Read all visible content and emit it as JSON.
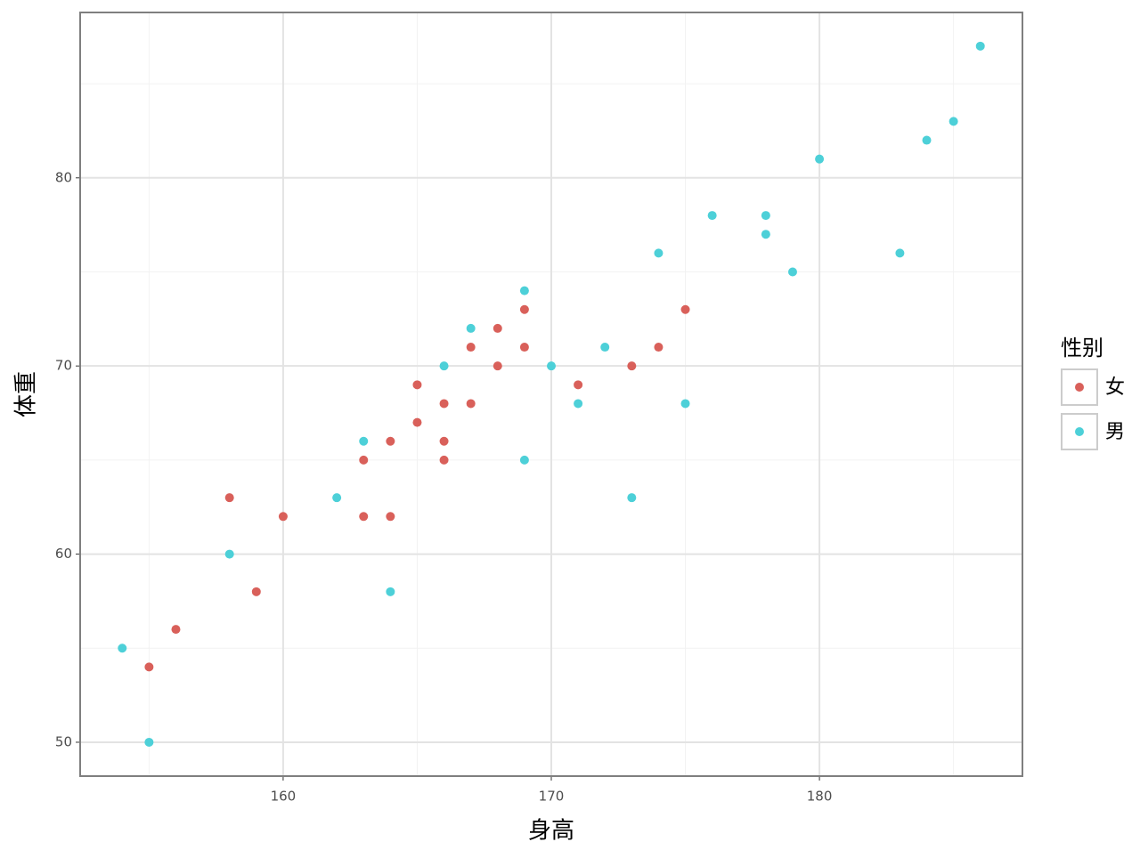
{
  "chart_data": {
    "type": "scatter",
    "x_label": "身高",
    "y_label": "体重",
    "xlim": [
      152.43,
      187.57
    ],
    "ylim": [
      48.2,
      88.79
    ],
    "xticks": [
      160,
      170,
      180
    ],
    "yticks": [
      50,
      60,
      70,
      80
    ],
    "xminor": [
      155,
      165,
      175,
      185
    ],
    "yminor": [
      55,
      65,
      75,
      85
    ],
    "grid": true,
    "legend_title": "性别",
    "legend_position": "right",
    "series": [
      {
        "name": "女",
        "color": "#d9605a",
        "x": [
          155,
          156,
          158,
          159,
          160,
          163,
          163,
          164,
          164,
          165,
          165,
          166,
          166,
          166,
          167,
          167,
          168,
          168,
          169,
          169,
          171,
          173,
          174,
          175
        ],
        "values": [
          54,
          56,
          63,
          58,
          62,
          65,
          62,
          66,
          62,
          69,
          67,
          68,
          66,
          65,
          71,
          68,
          72,
          70,
          73,
          71,
          69,
          70,
          71,
          73
        ]
      },
      {
        "name": "男",
        "color": "#4dd0d8",
        "x": [
          154,
          155,
          158,
          162,
          163,
          164,
          166,
          167,
          169,
          169,
          170,
          171,
          172,
          173,
          174,
          175,
          176,
          178,
          178,
          179,
          180,
          183,
          184,
          185,
          186
        ],
        "values": [
          55,
          50,
          60,
          63,
          66,
          58,
          70,
          72,
          74,
          65,
          70,
          68,
          71,
          63,
          76,
          68,
          78,
          78,
          77,
          75,
          81,
          76,
          82,
          83,
          87
        ]
      }
    ]
  }
}
